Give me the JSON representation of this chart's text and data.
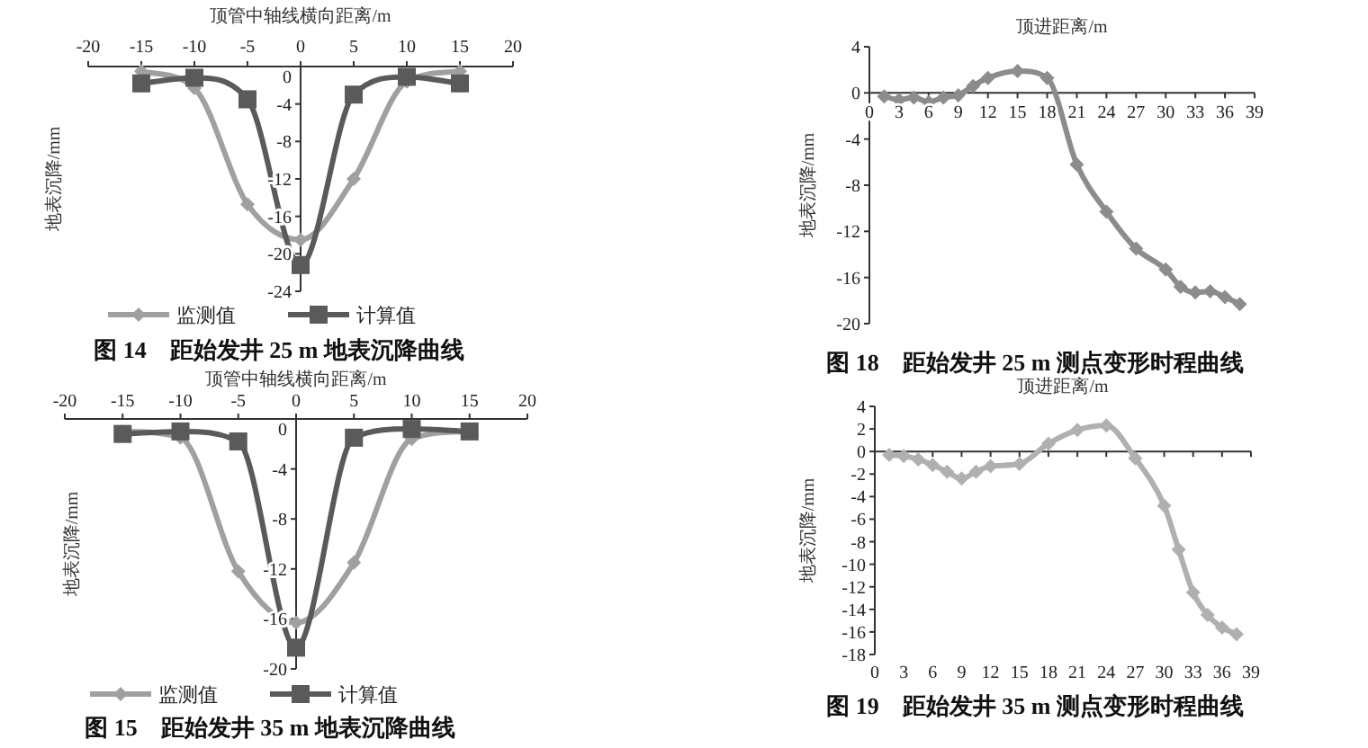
{
  "chart_data": [
    {
      "type": "line",
      "title": "图 14　距始发井 25 m 地表沉降曲线",
      "xlabel": "顶管中轴线横向距离/m",
      "ylabel": "地表沉降/mm",
      "x": [
        -15,
        -10,
        -5,
        0,
        5,
        10,
        15
      ],
      "xlim": [
        -20,
        20
      ],
      "xticks": [
        -20,
        -15,
        -10,
        -5,
        0,
        5,
        10,
        15,
        20
      ],
      "ylim": [
        -24,
        0
      ],
      "yticks": [
        -24,
        -20,
        -16,
        -12,
        -8,
        -4,
        0
      ],
      "legend": "bottom",
      "series": [
        {
          "name": "监测值",
          "color": "#a0a0a0",
          "marker": "diamond",
          "values": [
            -0.5,
            -2.3,
            -14.7,
            -18.5,
            -12,
            -1.6,
            -0.5
          ]
        },
        {
          "name": "计算值",
          "color": "#5a5a5a",
          "marker": "square",
          "values": [
            -1.8,
            -1.2,
            -3.5,
            -21.2,
            -3,
            -1.1,
            -1.8
          ]
        }
      ]
    },
    {
      "type": "line",
      "title": "图 18　距始发井 25 m 测点变形时程曲线",
      "xlabel": "顶进距离/m",
      "ylabel": "地表沉降/mm",
      "x": [
        1.5,
        3,
        4.5,
        6,
        7.5,
        9,
        10.5,
        12,
        15,
        18,
        21,
        24,
        27,
        30,
        31.5,
        33,
        34.5,
        36,
        37.5
      ],
      "xlim": [
        0,
        39
      ],
      "xticks": [
        0,
        3,
        6,
        9,
        12,
        15,
        18,
        21,
        24,
        27,
        30,
        33,
        36,
        39
      ],
      "ylim": [
        -20,
        4
      ],
      "yticks": [
        -20,
        -16,
        -12,
        -8,
        -4,
        0,
        4
      ],
      "series": [
        {
          "color": "#8c8c8c",
          "marker": "diamond",
          "values": [
            -0.3,
            -0.6,
            -0.4,
            -0.8,
            -0.4,
            -0.2,
            0.6,
            1.3,
            1.9,
            1.3,
            -6.2,
            -10.3,
            -13.5,
            -15.3,
            -16.8,
            -17.3,
            -17.2,
            -17.7,
            -18.3
          ]
        }
      ]
    },
    {
      "type": "line",
      "title": "图 15　距始发井 35 m 地表沉降曲线",
      "xlabel": "顶管中轴线横向距离/m",
      "ylabel": "地表沉降/mm",
      "x": [
        -15,
        -10,
        -5,
        0,
        5,
        10,
        15
      ],
      "xlim": [
        -20,
        20
      ],
      "xticks": [
        -20,
        -15,
        -10,
        -5,
        0,
        5,
        10,
        15,
        20
      ],
      "ylim": [
        -20,
        0
      ],
      "yticks": [
        -20,
        -16,
        -12,
        -8,
        -4,
        0
      ],
      "legend": "bottom",
      "series": [
        {
          "name": "监测值",
          "color": "#a0a0a0",
          "marker": "diamond",
          "values": [
            -1.0,
            -1.5,
            -12.2,
            -16.3,
            -11.5,
            -1.6,
            -1.0
          ]
        },
        {
          "name": "计算值",
          "color": "#5a5a5a",
          "marker": "square",
          "values": [
            -1.2,
            -1.0,
            -1.8,
            -18.3,
            -1.5,
            -0.8,
            -1.0
          ]
        }
      ]
    },
    {
      "type": "line",
      "title": "图 19　距始发井 35 m 测点变形时程曲线",
      "xlabel": "顶进距离/m",
      "ylabel": "地表沉降/mm",
      "x": [
        1.5,
        3,
        4.5,
        6,
        7.5,
        9,
        10.5,
        12,
        15,
        18,
        21,
        24,
        27,
        30,
        31.5,
        33,
        34.5,
        36,
        37.5
      ],
      "xlim": [
        0,
        39
      ],
      "xticks": [
        0,
        3,
        6,
        9,
        12,
        15,
        18,
        21,
        24,
        27,
        30,
        33,
        36,
        39
      ],
      "ylim": [
        -18,
        4
      ],
      "yticks": [
        -18,
        -16,
        -14,
        -12,
        -10,
        -8,
        -6,
        -4,
        -2,
        0,
        2,
        4
      ],
      "series": [
        {
          "color": "#b0b0b0",
          "marker": "diamond",
          "values": [
            -0.3,
            -0.4,
            -0.7,
            -1.2,
            -1.8,
            -2.4,
            -1.8,
            -1.3,
            -1.1,
            0.7,
            1.9,
            2.3,
            -0.6,
            -4.8,
            -8.7,
            -12.5,
            -14.5,
            -15.6,
            -16.2
          ]
        }
      ]
    }
  ]
}
